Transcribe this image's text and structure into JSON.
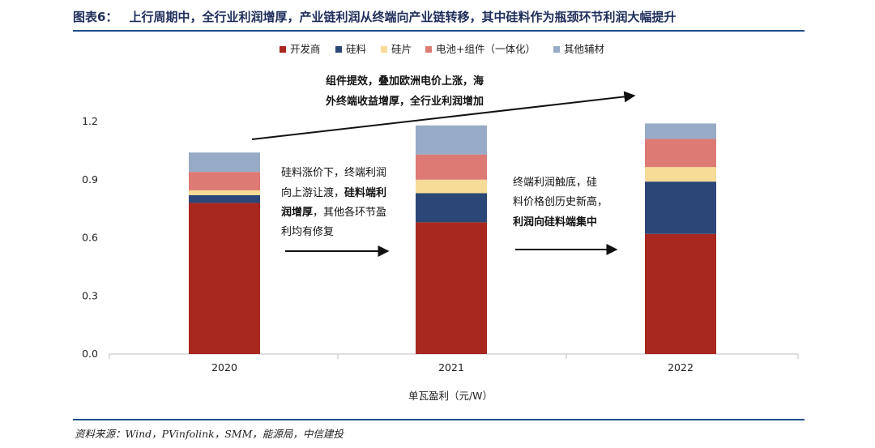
{
  "figure": {
    "label": "图表6：",
    "title": "上行周期中，全行业利润增厚，产业链利润从终端向产业链转移，其中硅料作为瓶颈环节利润大幅提升",
    "source": "资料来源：Wind，PVinfolink，SMM，能源局，中信建投"
  },
  "chart_data": {
    "type": "stacked-bar",
    "categories": [
      "2020",
      "2021",
      "2022"
    ],
    "xlabel": "单瓦盈利（元/W）",
    "ylabel": "",
    "ylim": [
      0,
      1.2
    ],
    "yticks": [
      "0.0",
      "0.3",
      "0.6",
      "0.9",
      "1.2"
    ],
    "legend_position": "top-center",
    "series": [
      {
        "name": "开发商",
        "color": "#a8281f",
        "values": [
          0.78,
          0.68,
          0.62
        ]
      },
      {
        "name": "硅料",
        "color": "#2b4777",
        "values": [
          0.04,
          0.15,
          0.27
        ]
      },
      {
        "name": "硅片",
        "color": "#f7dc98",
        "values": [
          0.025,
          0.07,
          0.075
        ]
      },
      {
        "name": "电池+组件（一体化）",
        "color": "#dd7a74",
        "values": [
          0.095,
          0.13,
          0.145
        ]
      },
      {
        "name": "其他辅材",
        "color": "#97abc7",
        "values": [
          0.1,
          0.15,
          0.08
        ]
      }
    ],
    "annotations": {
      "top_line1": "组件提效，叠加欧洲电价上涨，海",
      "top_line2": "外终端收益增厚，全行业利润增加",
      "left_line1": "硅料涨价下，终端利润",
      "left_line2a": "向上游让渡，",
      "left_line2b": "硅料端利",
      "left_line3a": "润增厚",
      "left_line3b": "，其他各环节盈",
      "left_line4": "利均有修复",
      "right_line1": "终端利润触底，硅",
      "right_line2": "料价格创历史新高，",
      "right_line3": "利润向硅料端集中"
    }
  }
}
